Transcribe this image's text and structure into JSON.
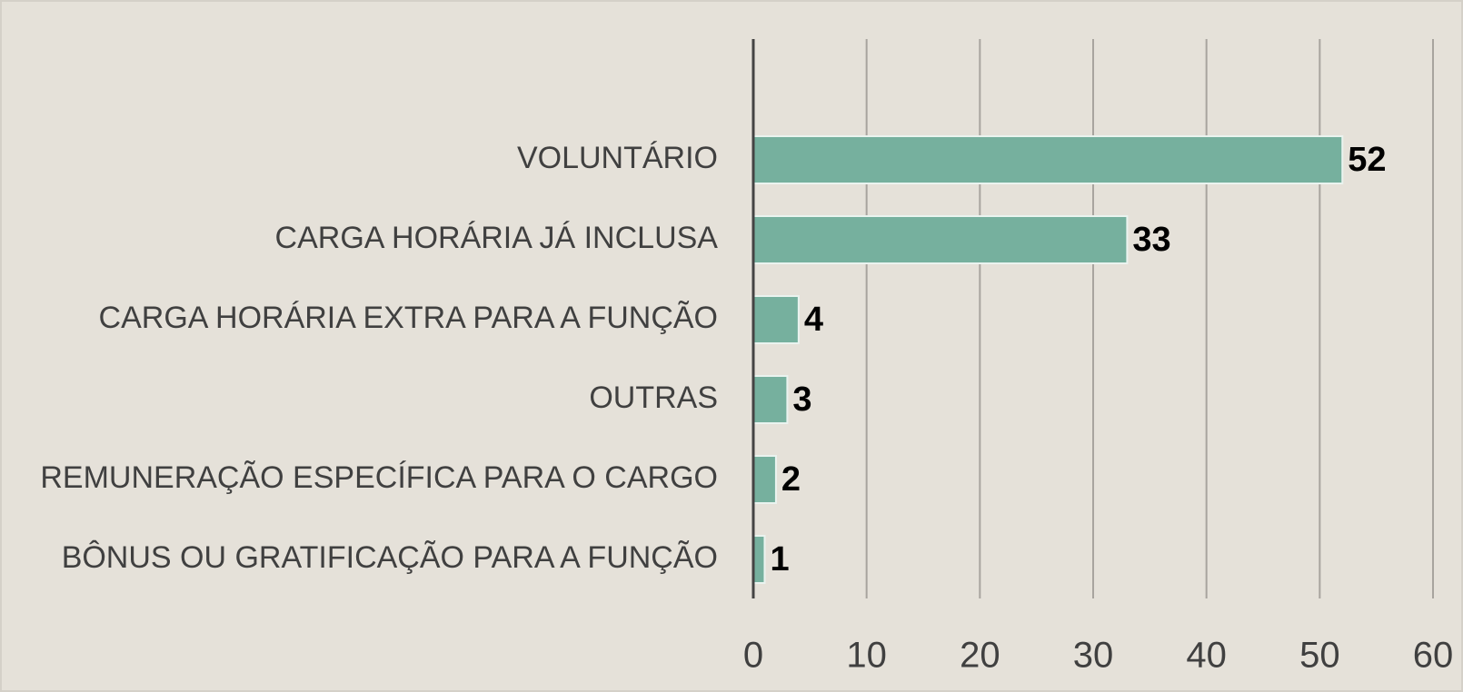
{
  "chart_data": {
    "type": "bar",
    "orientation": "horizontal",
    "categories": [
      "VOLUNTÁRIO",
      "CARGA HORÁRIA JÁ INCLUSA",
      "CARGA HORÁRIA EXTRA PARA A FUNÇÃO",
      "OUTRAS",
      "REMUNERAÇÃO ESPECÍFICA PARA O CARGO",
      "BÔNUS OU GRATIFICAÇÃO PARA A FUNÇÃO"
    ],
    "values": [
      52,
      33,
      4,
      3,
      2,
      1
    ],
    "color": "#76b09e",
    "xlim": [
      0,
      60
    ],
    "xticks": [
      0,
      10,
      20,
      30,
      40,
      50,
      60
    ],
    "grid": true
  }
}
